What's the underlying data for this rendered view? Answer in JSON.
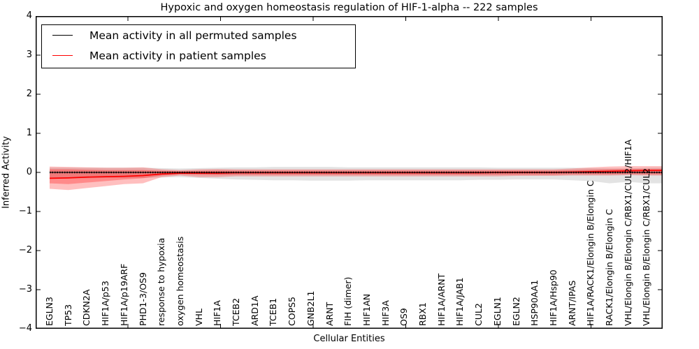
{
  "figure": {
    "title": "Hypoxic and oxygen homeostasis regulation of HIF-1-alpha -- 222 samples",
    "xlabel": "Cellular Entities",
    "ylabel": "Inferred Activity"
  },
  "legend": {
    "items": [
      {
        "label": "Mean activity in all permuted samples",
        "color": "#000000"
      },
      {
        "label": "Mean activity in patient samples",
        "color": "#ff0000"
      }
    ]
  },
  "axes": {
    "y_ticks": [
      {
        "label": "4",
        "value": 4
      },
      {
        "label": "3",
        "value": 3
      },
      {
        "label": "2",
        "value": 2
      },
      {
        "label": "1",
        "value": 1
      },
      {
        "label": "0",
        "value": 0
      },
      {
        "label": "−1",
        "value": -1
      },
      {
        "label": "−2",
        "value": -2
      },
      {
        "label": "−3",
        "value": -3
      },
      {
        "label": "−4",
        "value": -4
      }
    ],
    "ylim": [
      -4,
      4
    ]
  },
  "chart_data": {
    "type": "line",
    "title": "Hypoxic and oxygen homeostasis regulation of HIF-1-alpha -- 222 samples",
    "xlabel": "Cellular Entities",
    "ylabel": "Inferred Activity",
    "ylim": [
      -4,
      4
    ],
    "grid": false,
    "legend_position": "upper left",
    "categories": [
      "EGLN3",
      "TP53",
      "CDKN2A",
      "HIF1A/p53",
      "HIF1A/p19ARF",
      "PHD1-3/OS9",
      "response to hypoxia",
      "oxygen homeostasis",
      "VHL",
      "HIF1A",
      "TCEB2",
      "ARD1A",
      "TCEB1",
      "COPS5",
      "GNB2L1",
      "ARNT",
      "FIH (dimer)",
      "HIF1AN",
      "HIF3A",
      "OS9",
      "RBX1",
      "HIF1A/ARNT",
      "HIF1A/JAB1",
      "CUL2",
      "EGLN1",
      "EGLN2",
      "HSP90AA1",
      "HIF1A/Hsp90",
      "ARNT/IPAS",
      "HIF1A/RACK1/Elongin B/Elongin C",
      "RACK1/Elongin B/Elongin C",
      "VHL/Elongin B/Elongin C/RBX1/CUL2/HIF1A",
      "VHL/Elongin B/Elongin C/RBX1/CUL2"
    ],
    "series": [
      {
        "name": "Mean activity in all permuted samples",
        "color": "#000000",
        "values": [
          0,
          0,
          0,
          0,
          0,
          0,
          0,
          0,
          0,
          0,
          0,
          0,
          0,
          0,
          0,
          0,
          0,
          0,
          0,
          0,
          0,
          0,
          0,
          0,
          0,
          0,
          0,
          0,
          0,
          0,
          0,
          0,
          0
        ]
      },
      {
        "name": "Mean activity in patient samples",
        "color": "#ff0000",
        "values": [
          -0.15,
          -0.14,
          -0.12,
          -0.11,
          -0.1,
          -0.08,
          -0.04,
          -0.02,
          -0.02,
          -0.02,
          -0.01,
          -0.01,
          -0.01,
          -0.01,
          -0.01,
          -0.01,
          -0.01,
          -0.01,
          -0.01,
          -0.01,
          -0.01,
          -0.01,
          -0.01,
          -0.01,
          0,
          0,
          0,
          0,
          0.01,
          0.02,
          0.03,
          0.04,
          0.05
        ]
      }
    ],
    "bands": [
      {
        "name": "permuted-samples-range",
        "color": "#808080",
        "opacity": 0.22,
        "high": [
          0.12,
          0.12,
          0.12,
          0.12,
          0.12,
          0.12,
          0.11,
          0.1,
          0.11,
          0.12,
          0.13,
          0.13,
          0.14,
          0.14,
          0.14,
          0.14,
          0.13,
          0.13,
          0.13,
          0.13,
          0.13,
          0.13,
          0.13,
          0.13,
          0.12,
          0.12,
          0.12,
          0.12,
          0.12,
          0.11,
          0.1,
          0.1,
          0.12
        ],
        "low": [
          -0.15,
          -0.15,
          -0.15,
          -0.14,
          -0.14,
          -0.14,
          -0.13,
          -0.12,
          -0.14,
          -0.16,
          -0.18,
          -0.19,
          -0.2,
          -0.2,
          -0.21,
          -0.21,
          -0.21,
          -0.2,
          -0.2,
          -0.2,
          -0.2,
          -0.2,
          -0.2,
          -0.19,
          -0.19,
          -0.18,
          -0.18,
          -0.18,
          -0.2,
          -0.22,
          -0.28,
          -0.24,
          -0.28
        ]
      },
      {
        "name": "patient-samples-range-outer",
        "color": "#ff0000",
        "opacity": 0.25,
        "high": [
          0.15,
          0.14,
          0.13,
          0.12,
          0.12,
          0.13,
          0.08,
          0.06,
          0.08,
          0.09,
          0.08,
          0.08,
          0.08,
          0.08,
          0.08,
          0.08,
          0.08,
          0.08,
          0.08,
          0.08,
          0.08,
          0.08,
          0.08,
          0.08,
          0.08,
          0.08,
          0.08,
          0.08,
          0.1,
          0.13,
          0.15,
          0.16,
          0.16
        ],
        "low": [
          -0.42,
          -0.45,
          -0.4,
          -0.35,
          -0.3,
          -0.28,
          -0.12,
          -0.08,
          -0.12,
          -0.12,
          -0.1,
          -0.1,
          -0.1,
          -0.1,
          -0.1,
          -0.1,
          -0.1,
          -0.1,
          -0.1,
          -0.1,
          -0.1,
          -0.1,
          -0.1,
          -0.1,
          -0.1,
          -0.09,
          -0.09,
          -0.09,
          -0.08,
          -0.08,
          -0.08,
          -0.07,
          -0.08
        ]
      },
      {
        "name": "patient-samples-range-inner",
        "color": "#ff0000",
        "opacity": 0.28,
        "high": [
          0.08,
          0.08,
          0.07,
          0.06,
          0.06,
          0.06,
          0.04,
          0.03,
          0.04,
          0.05,
          0.05,
          0.05,
          0.05,
          0.05,
          0.05,
          0.05,
          0.05,
          0.05,
          0.05,
          0.05,
          0.05,
          0.05,
          0.05,
          0.05,
          0.05,
          0.05,
          0.05,
          0.05,
          0.06,
          0.07,
          0.08,
          0.09,
          0.09
        ],
        "low": [
          -0.28,
          -0.3,
          -0.26,
          -0.22,
          -0.18,
          -0.15,
          -0.08,
          -0.05,
          -0.06,
          -0.07,
          -0.06,
          -0.06,
          -0.06,
          -0.06,
          -0.06,
          -0.06,
          -0.06,
          -0.06,
          -0.06,
          -0.06,
          -0.06,
          -0.06,
          -0.06,
          -0.06,
          -0.06,
          -0.06,
          -0.06,
          -0.06,
          -0.05,
          -0.05,
          -0.05,
          -0.04,
          -0.05
        ]
      }
    ]
  }
}
